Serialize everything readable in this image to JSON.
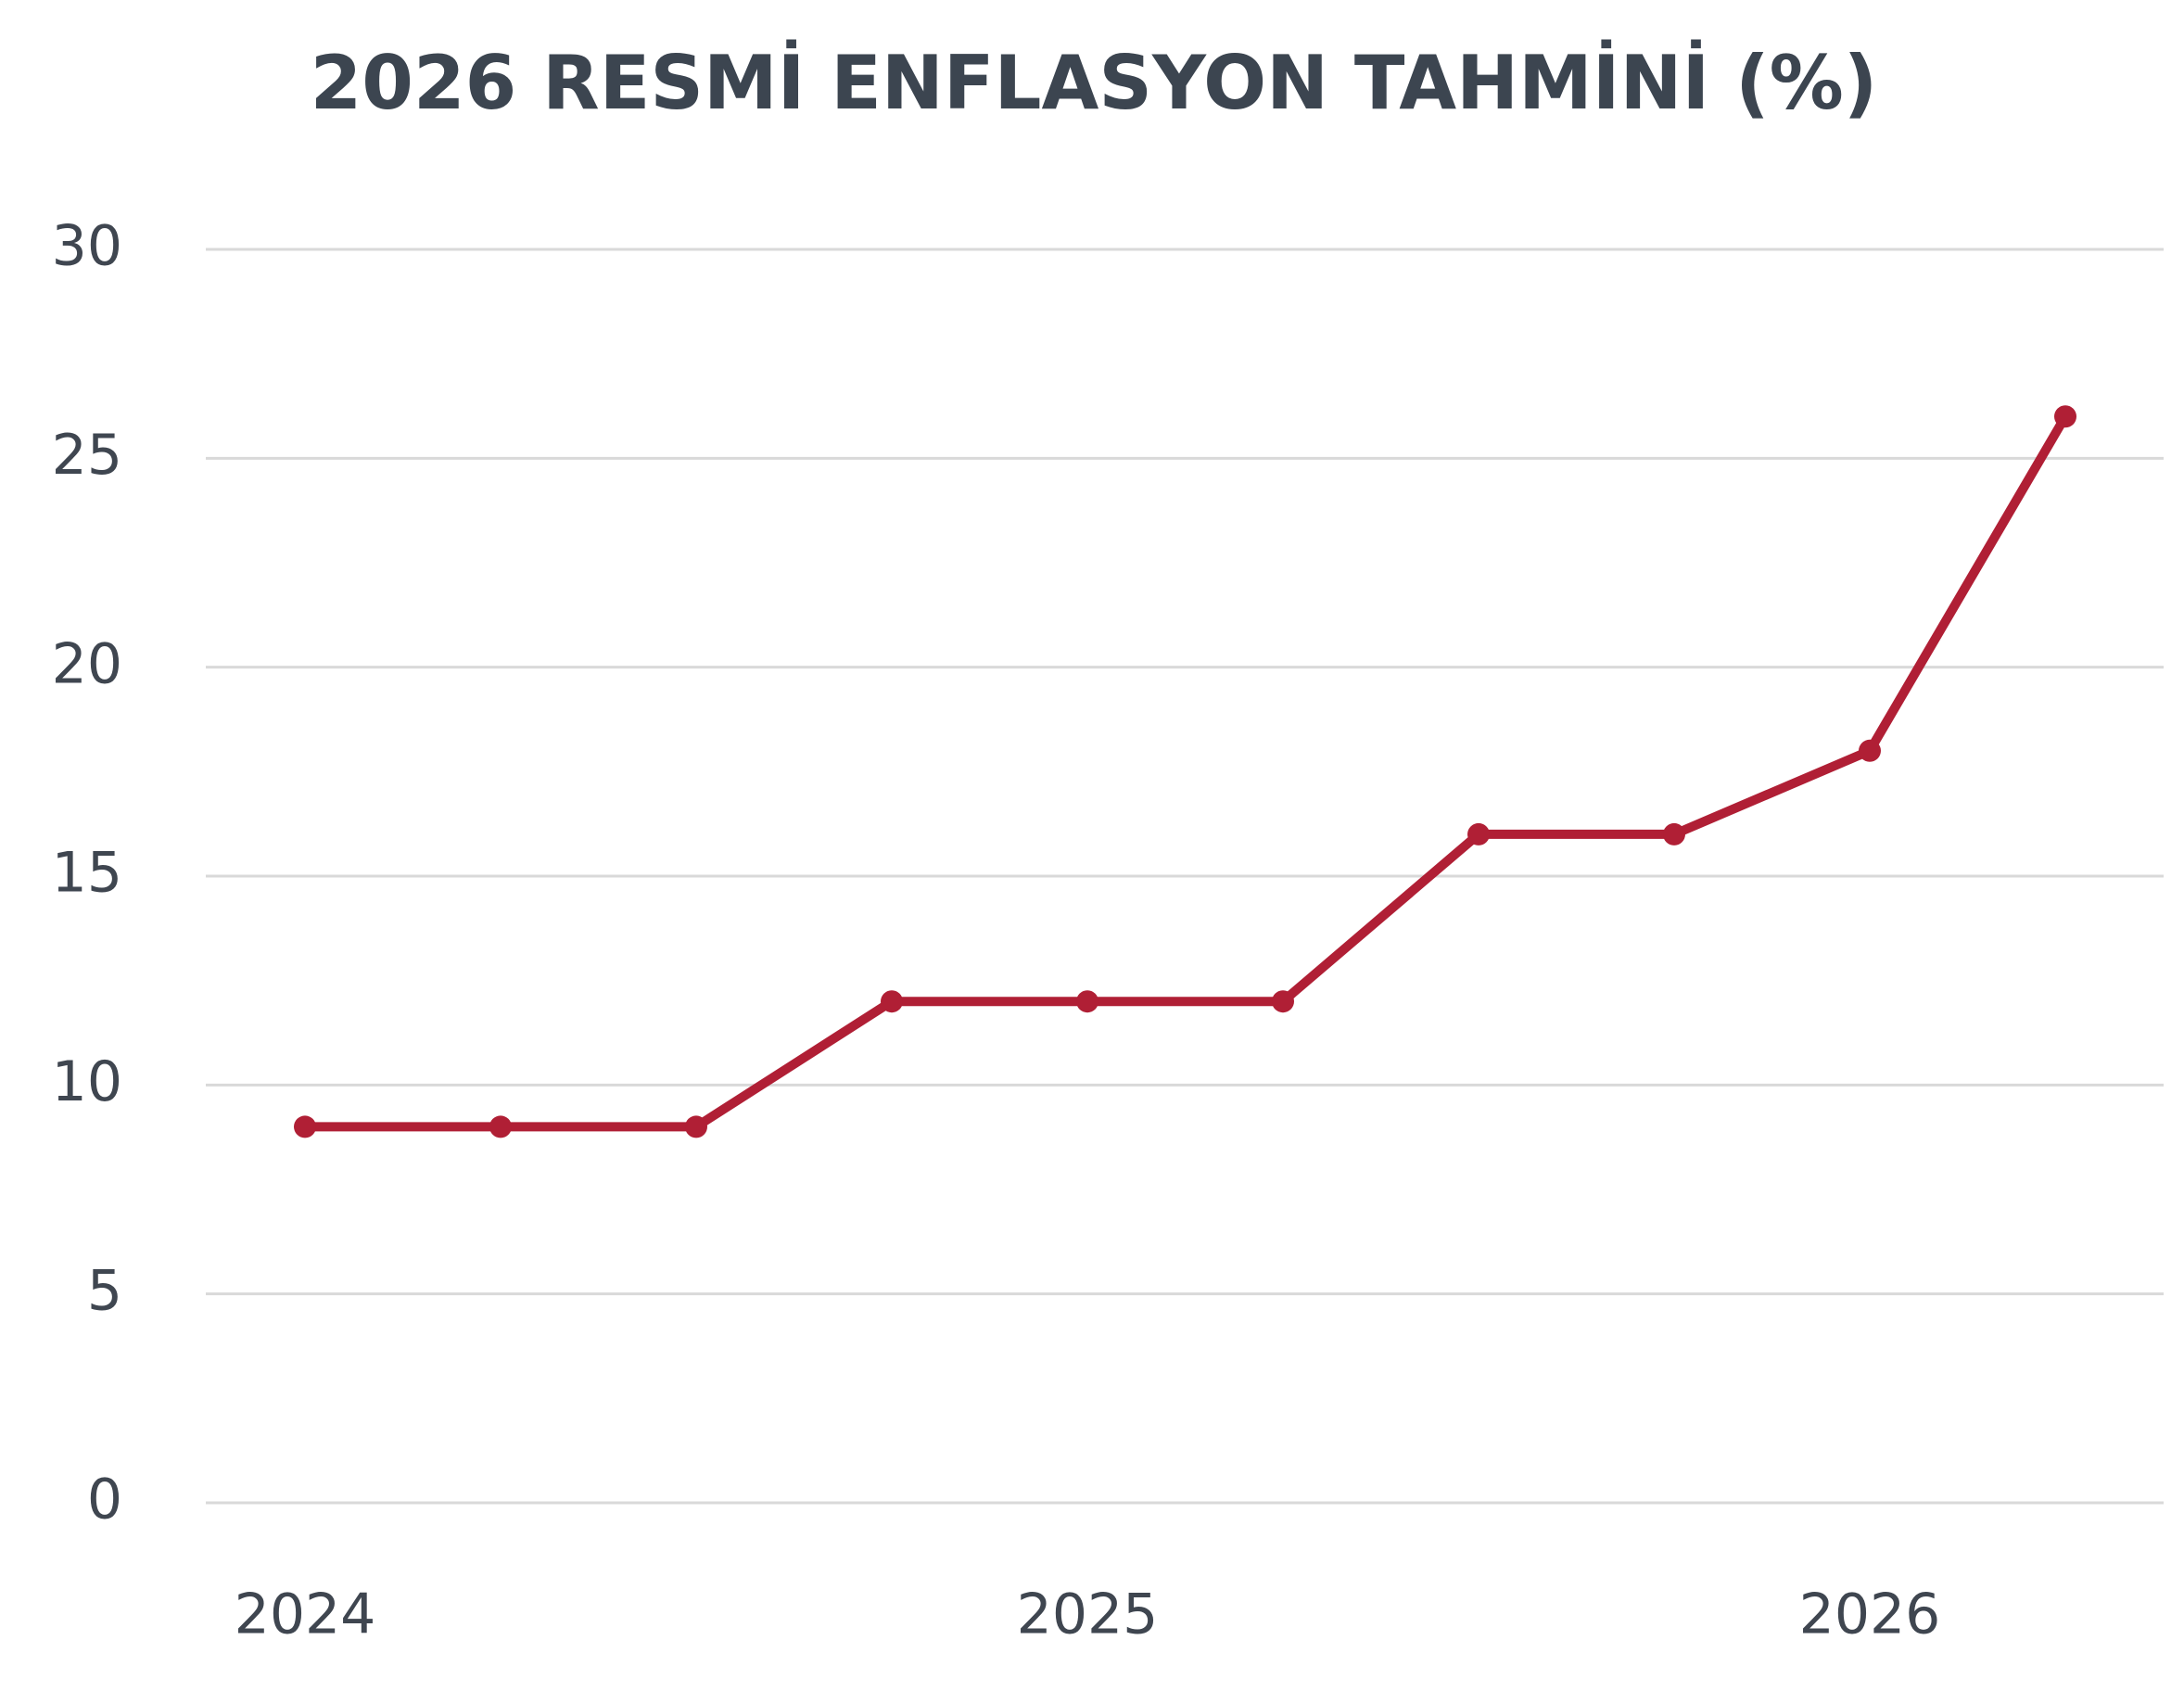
{
  "chart_data": {
    "type": "line",
    "title": "2026 RESMİ ENFLASYON TAHMİNİ (%)",
    "categories": [
      "2024",
      null,
      null,
      null,
      "2025",
      null,
      null,
      null,
      "2026",
      null
    ],
    "series": [
      {
        "name": null,
        "color": "#b01f35",
        "values": [
          9,
          9,
          9,
          12,
          12,
          12,
          16,
          16,
          18,
          26
        ]
      }
    ],
    "ylim": [
      0,
      30
    ],
    "yticks": [
      0,
      5,
      10,
      15,
      20,
      25,
      30
    ],
    "grid": true
  }
}
